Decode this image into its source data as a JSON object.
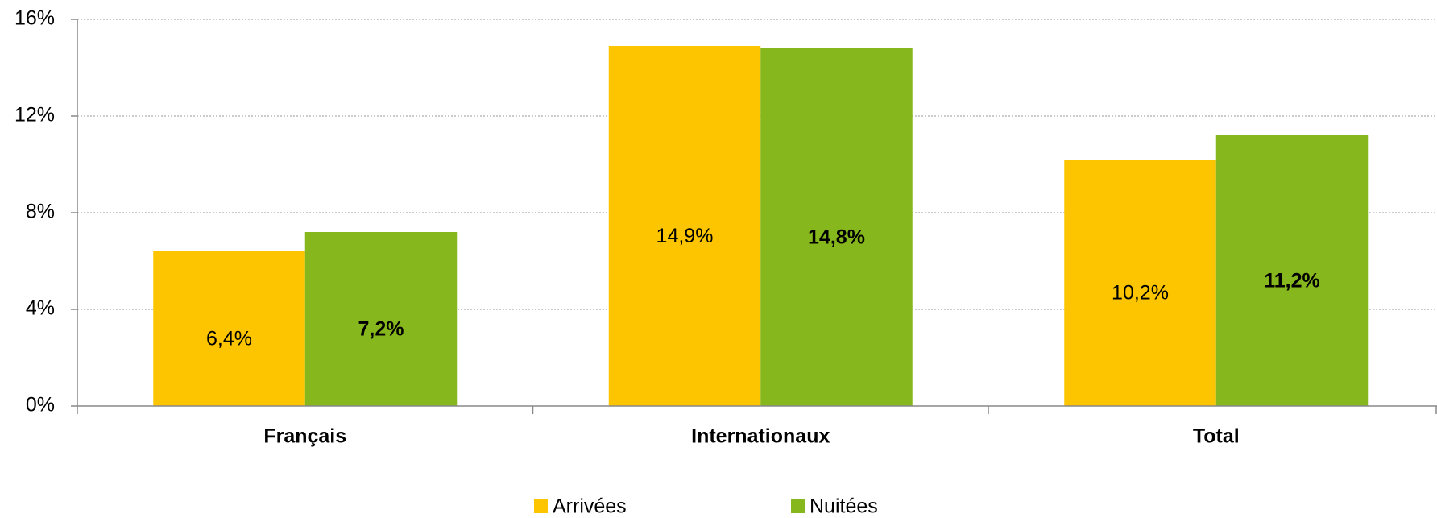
{
  "chart_data": {
    "type": "bar",
    "categories": [
      "Français",
      "Internationaux",
      "Total"
    ],
    "series": [
      {
        "name": "Arrivées",
        "color": "#fcc500",
        "values": [
          6.4,
          14.9,
          10.2
        ],
        "value_labels": [
          "6,4%",
          "14,9%",
          "10,2%"
        ]
      },
      {
        "name": "Nuitées",
        "color": "#86b81d",
        "values": [
          7.2,
          14.8,
          11.2
        ],
        "value_labels": [
          "7,2%",
          "14,8%",
          "11,2%"
        ]
      }
    ],
    "ylim": [
      0,
      16
    ],
    "yticks": [
      {
        "value": 0,
        "label": "0%"
      },
      {
        "value": 4,
        "label": "4%"
      },
      {
        "value": 8,
        "label": "8%"
      },
      {
        "value": 12,
        "label": "12%"
      },
      {
        "value": 16,
        "label": "16%"
      }
    ],
    "grid": true,
    "legend": "bottom"
  }
}
